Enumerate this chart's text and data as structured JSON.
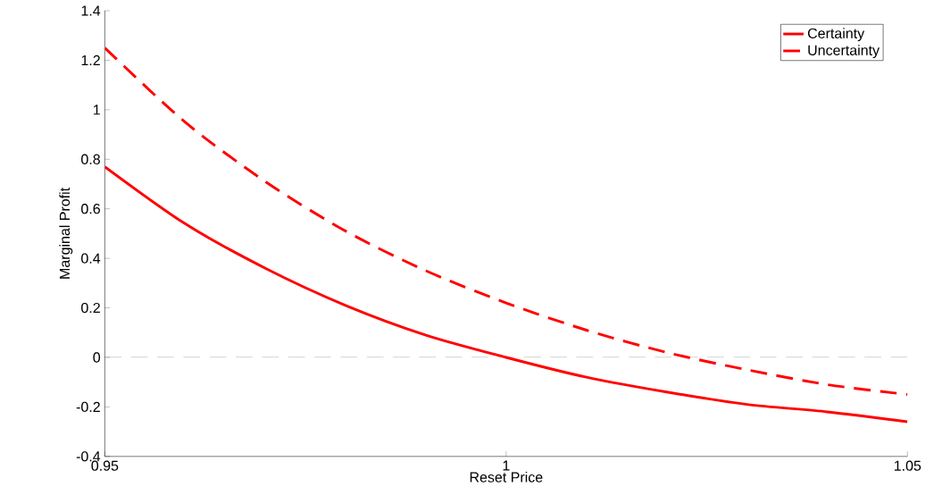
{
  "chart_data": {
    "type": "line",
    "xlabel": "Reset Price",
    "ylabel": "Marginal Profit",
    "x": [
      0.95,
      0.96,
      0.97,
      0.98,
      0.99,
      1.0,
      1.01,
      1.02,
      1.03,
      1.04,
      1.05
    ],
    "series": [
      {
        "name": "Certainty",
        "color": "#ff0000",
        "line_style": "solid",
        "values": [
          0.77,
          0.54,
          0.36,
          0.21,
          0.09,
          0.0,
          -0.08,
          -0.14,
          -0.19,
          -0.22,
          -0.26
        ]
      },
      {
        "name": "Uncertainty",
        "color": "#ff0000",
        "line_style": "dashed",
        "values": [
          1.25,
          0.95,
          0.71,
          0.51,
          0.35,
          0.22,
          0.11,
          0.02,
          -0.05,
          -0.11,
          -0.15
        ]
      }
    ],
    "xlim": [
      0.95,
      1.05
    ],
    "xticks": [
      0.95,
      1,
      1.05
    ],
    "ylim": [
      -0.4,
      1.4
    ],
    "yticks": [
      -0.4,
      -0.2,
      0,
      0.2,
      0.4,
      0.6,
      0.8,
      1,
      1.2,
      1.4
    ],
    "ref_lines": [
      {
        "axis": "y",
        "value": 0,
        "color": "#808080",
        "line_style": "dashed"
      }
    ],
    "grid": false,
    "legend": "top right",
    "marker": "none"
  }
}
